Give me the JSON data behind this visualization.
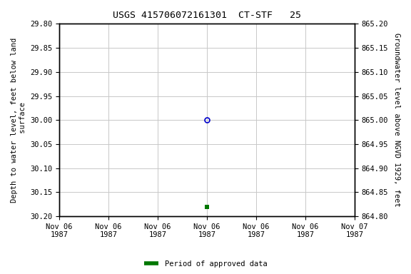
{
  "title": "USGS 415706072161301  CT-STF   25",
  "ylabel_left": "Depth to water level, feet below land\n surface",
  "ylabel_right": "Groundwater level above NGVD 1929, feet",
  "ylim_left": [
    30.2,
    29.8
  ],
  "ylim_right": [
    864.8,
    865.2
  ],
  "yticks_left": [
    29.8,
    29.85,
    29.9,
    29.95,
    30.0,
    30.05,
    30.1,
    30.15,
    30.2
  ],
  "yticks_right": [
    865.2,
    865.15,
    865.1,
    865.05,
    865.0,
    864.95,
    864.9,
    864.85,
    864.8
  ],
  "data_circle": {
    "date": "1987-11-06 12:00:00",
    "value": 30.0
  },
  "data_square": {
    "date": "1987-11-06 12:00:00",
    "value": 30.18
  },
  "x_start": "1987-11-06 00:00:00",
  "x_end": "1987-11-07 00:00:00",
  "background_color": "#ffffff",
  "grid_color": "#c8c8c8",
  "circle_color": "#0000cc",
  "square_color": "#007700",
  "legend_label": "Period of approved data",
  "title_fontsize": 9.5,
  "tick_fontsize": 7.5,
  "label_fontsize": 7.5
}
